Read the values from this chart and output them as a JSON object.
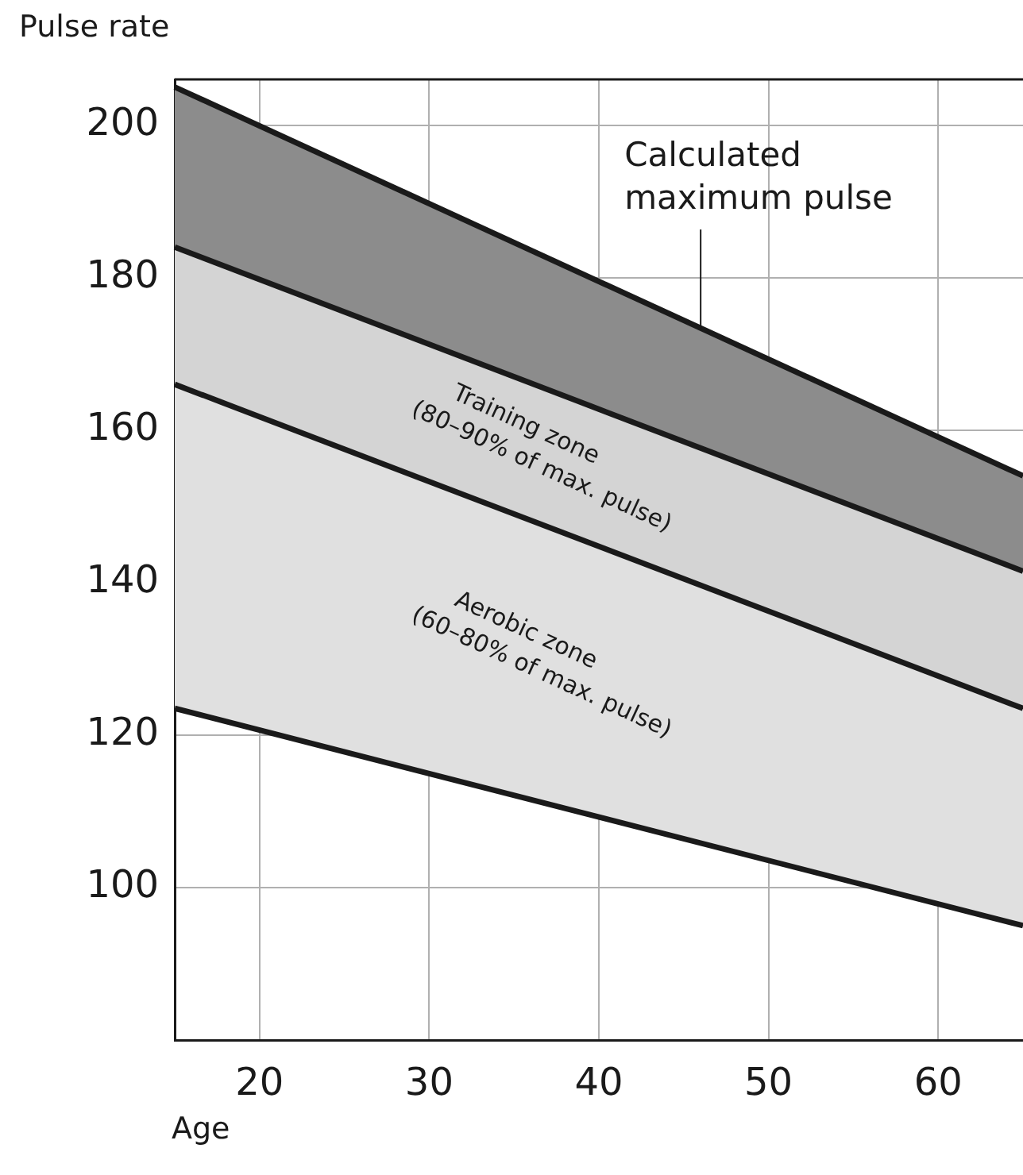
{
  "chart_data": {
    "type": "line",
    "ylabel": "Pulse rate",
    "xlabel": "Age",
    "x": [
      15,
      65
    ],
    "series": [
      {
        "color": "#1a1a1a",
        "values": [
          205,
          154
        ],
        "lower": [
          184,
          141.5
        ],
        "upper": [
          205,
          154
        ]
      },
      {
        "color": "#1a1a1a",
        "values": [
          184,
          141.5
        ],
        "lower": [
          166,
          123.5
        ],
        "upper": [
          184,
          141.5
        ]
      },
      {
        "color": "#1a1a1a",
        "values": [
          166,
          123.5
        ],
        "lower": [
          123.5,
          95
        ],
        "upper": [
          166,
          123.5
        ]
      },
      {
        "color": "#1a1a1a",
        "values": [
          123.5,
          95
        ]
      }
    ],
    "xlim": [
      15,
      65
    ],
    "xticks": [
      20,
      30,
      40,
      50,
      60
    ],
    "ylim": [
      80,
      206
    ],
    "yticks": [
      100,
      120,
      140,
      160,
      180,
      200
    ],
    "grid": true,
    "marker": "none",
    "line_style": "solid",
    "annotations": [
      {
        "text": "Calculated\nmaximum pulse",
        "x": 46,
        "y": 173.4
      },
      "Training zone\n(80–90% of max. pulse)",
      "Aerobic zone\n(60–80% of max. pulse)"
    ]
  }
}
